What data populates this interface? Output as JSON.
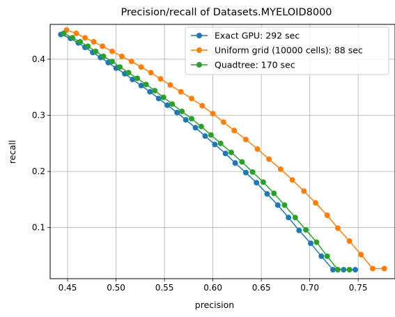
{
  "chart_data": {
    "type": "line",
    "title": "Precision/recall of Datasets.MYELOID8000",
    "xlabel": "precision",
    "ylabel": "recall",
    "xlim": [
      0.432,
      0.788
    ],
    "ylim": [
      0.009,
      0.462
    ],
    "xticks": [
      0.45,
      0.5,
      0.55,
      0.6,
      0.65,
      0.7,
      0.75
    ],
    "xtick_labels": [
      "0.45",
      "0.50",
      "0.55",
      "0.60",
      "0.65",
      "0.70",
      "0.75"
    ],
    "yticks": [
      0.1,
      0.2,
      0.3,
      0.4
    ],
    "ytick_labels": [
      "0.1",
      "0.2",
      "0.3",
      "0.4"
    ],
    "grid": true,
    "legend_position": "top-right",
    "series": [
      {
        "name": "Exact GPU: 292 sec",
        "color": "#1f77b4",
        "x": [
          0.443,
          0.453,
          0.461,
          0.468,
          0.476,
          0.484,
          0.492,
          0.5,
          0.509,
          0.517,
          0.526,
          0.535,
          0.544,
          0.553,
          0.563,
          0.572,
          0.582,
          0.592,
          0.602,
          0.613,
          0.623,
          0.634,
          0.645,
          0.656,
          0.667,
          0.678,
          0.689,
          0.701,
          0.712,
          0.724,
          0.735,
          0.747
        ],
        "y": [
          0.444,
          0.437,
          0.429,
          0.421,
          0.412,
          0.403,
          0.394,
          0.384,
          0.374,
          0.364,
          0.353,
          0.342,
          0.33,
          0.318,
          0.305,
          0.292,
          0.278,
          0.263,
          0.248,
          0.232,
          0.215,
          0.198,
          0.18,
          0.16,
          0.14,
          0.118,
          0.095,
          0.072,
          0.049,
          0.025,
          0.025,
          0.025
        ]
      },
      {
        "name": "Uniform grid (10000 cells): 88 sec",
        "color": "#ff7f0e",
        "x": [
          0.449,
          0.459,
          0.468,
          0.477,
          0.486,
          0.496,
          0.506,
          0.516,
          0.526,
          0.536,
          0.546,
          0.556,
          0.567,
          0.578,
          0.589,
          0.6,
          0.611,
          0.622,
          0.634,
          0.646,
          0.658,
          0.67,
          0.682,
          0.694,
          0.706,
          0.718,
          0.729,
          0.741,
          0.753,
          0.765,
          0.777
        ],
        "y": [
          0.452,
          0.446,
          0.438,
          0.431,
          0.423,
          0.414,
          0.405,
          0.396,
          0.386,
          0.376,
          0.365,
          0.354,
          0.342,
          0.33,
          0.317,
          0.303,
          0.288,
          0.273,
          0.257,
          0.24,
          0.222,
          0.204,
          0.185,
          0.165,
          0.144,
          0.122,
          0.099,
          0.076,
          0.052,
          0.027,
          0.027
        ]
      },
      {
        "name": "Quadtree: 170 sec",
        "color": "#2ca02c",
        "x": [
          0.446,
          0.455,
          0.463,
          0.471,
          0.479,
          0.487,
          0.496,
          0.504,
          0.513,
          0.522,
          0.531,
          0.54,
          0.549,
          0.558,
          0.568,
          0.578,
          0.588,
          0.598,
          0.608,
          0.619,
          0.63,
          0.641,
          0.652,
          0.663,
          0.674,
          0.685,
          0.696,
          0.707,
          0.718,
          0.729,
          0.741
        ],
        "y": [
          0.446,
          0.438,
          0.431,
          0.423,
          0.414,
          0.405,
          0.396,
          0.386,
          0.376,
          0.366,
          0.355,
          0.344,
          0.332,
          0.32,
          0.307,
          0.294,
          0.28,
          0.265,
          0.25,
          0.234,
          0.217,
          0.199,
          0.181,
          0.161,
          0.14,
          0.118,
          0.096,
          0.074,
          0.049,
          0.025,
          0.025
        ]
      }
    ]
  }
}
